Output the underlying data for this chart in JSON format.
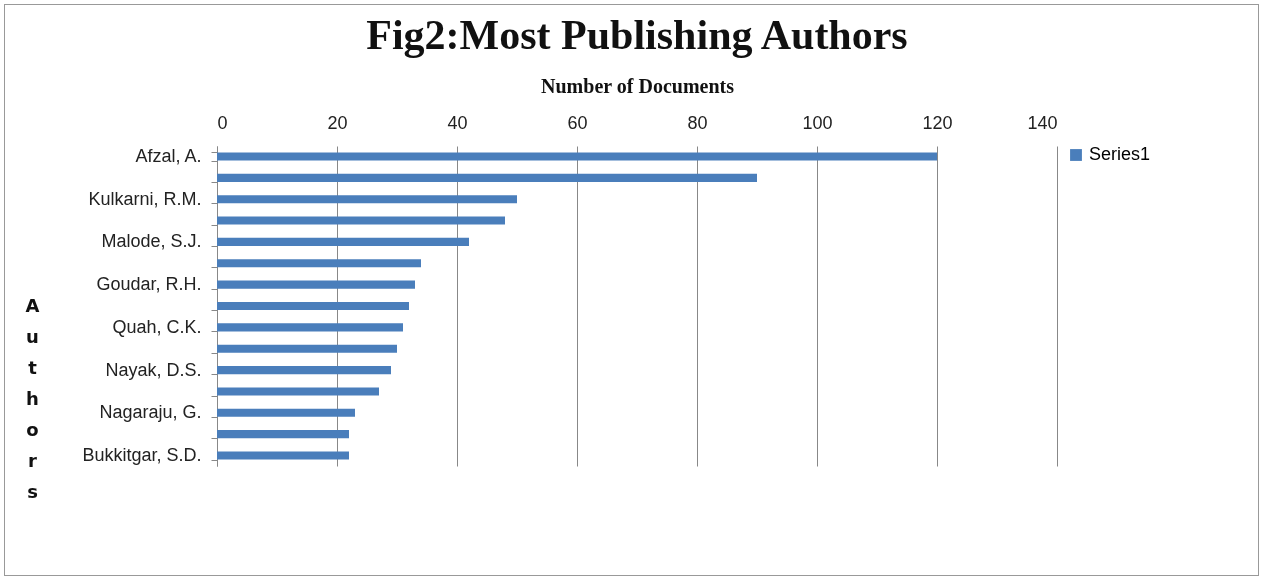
{
  "chart_data": {
    "type": "bar",
    "orientation": "horizontal",
    "title": "Fig2:Most Publishing Authors",
    "xlabel": "Number of Documents",
    "ylabel": "Authors",
    "categories": [
      "Afzal, A.",
      null,
      "Kulkarni, R.M.",
      null,
      "Malode, S.J.",
      null,
      "Goudar, R.H.",
      null,
      "Quah, C.K.",
      null,
      "Nayak, D.S.",
      null,
      "Nagaraju, G.",
      null,
      "Bukkitgar, S.D."
    ],
    "series": [
      {
        "name": "Series1",
        "color": "#4a7ebb",
        "values": [
          120,
          90,
          50,
          48,
          42,
          34,
          33,
          32,
          31,
          30,
          29,
          27,
          23,
          22,
          22
        ]
      }
    ],
    "xlim": [
      0,
      140
    ],
    "xticks": [
      0,
      20,
      40,
      60,
      80,
      100,
      120,
      140
    ],
    "grid": "x",
    "legend": "right"
  }
}
